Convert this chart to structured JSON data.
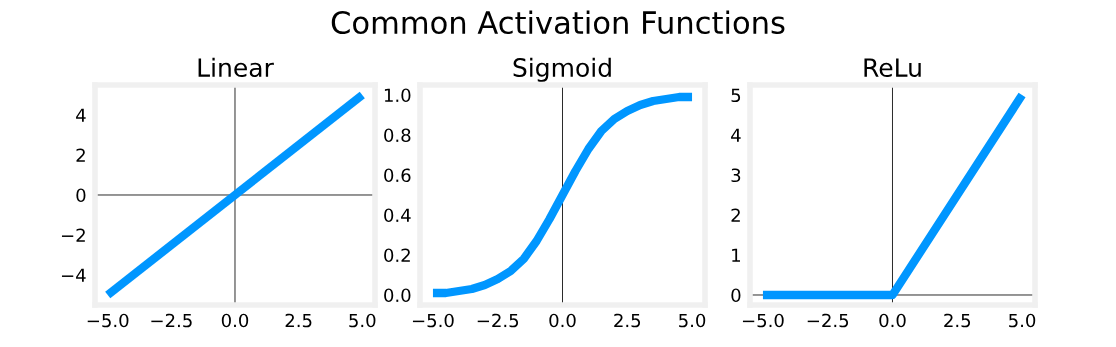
{
  "chart_data": [
    {
      "type": "line",
      "title": "Linear",
      "x": [
        -5,
        5
      ],
      "series": [
        {
          "color": "#0096ff",
          "values": [
            -5,
            5
          ]
        }
      ],
      "xlim": [
        -5.5,
        5.5
      ],
      "xticks": [
        {
          "value": -5,
          "label": "−5.0"
        },
        {
          "value": -2.5,
          "label": "−2.5"
        },
        {
          "value": 0,
          "label": "0.0"
        },
        {
          "value": 2.5,
          "label": "2.5"
        },
        {
          "value": 5,
          "label": "5.0"
        }
      ],
      "ylim": [
        -5.5,
        5.5
      ],
      "yticks": [
        {
          "value": -4,
          "label": "−4"
        },
        {
          "value": -2,
          "label": "−2"
        },
        0,
        2,
        4
      ],
      "ref_lines": [
        {
          "axis": "x",
          "value": 0,
          "color": "#000000"
        },
        {
          "axis": "y",
          "value": 0,
          "color": "#000000"
        }
      ],
      "annotations": [
        "Common Activation Functions"
      ]
    },
    {
      "type": "line",
      "title": "Sigmoid",
      "x": [
        -5,
        -4.5,
        -4,
        -3.5,
        -3,
        -2.5,
        -2,
        -1.5,
        -1,
        -0.5,
        0,
        0.5,
        1,
        1.5,
        2,
        2.5,
        3,
        3.5,
        4,
        4.5,
        5
      ],
      "series": [
        {
          "color": "#0096ff",
          "values": [
            0.01,
            0.01,
            0.02,
            0.03,
            0.05,
            0.08,
            0.12,
            0.18,
            0.27,
            0.38,
            0.5,
            0.62,
            0.73,
            0.82,
            0.88,
            0.92,
            0.95,
            0.97,
            0.98,
            0.99,
            0.99
          ]
        }
      ],
      "xlim": [
        -5.5,
        5.5
      ],
      "xticks": [
        {
          "value": -5,
          "label": "−5.0"
        },
        {
          "value": -2.5,
          "label": "−2.5"
        },
        {
          "value": 0,
          "label": "0.0"
        },
        {
          "value": 2.5,
          "label": "2.5"
        },
        {
          "value": 5,
          "label": "5.0"
        }
      ],
      "ylim": [
        -0.05,
        1.05
      ],
      "yticks": [
        {
          "value": 0,
          "label": "0.0"
        },
        {
          "value": 0.2,
          "label": "0.2"
        },
        {
          "value": 0.4,
          "label": "0.4"
        },
        {
          "value": 0.6,
          "label": "0.6"
        },
        {
          "value": 0.8,
          "label": "0.8"
        },
        {
          "value": 1,
          "label": "1.0"
        }
      ],
      "ref_lines": [
        {
          "axis": "x",
          "value": 0,
          "color": "#000000"
        }
      ]
    },
    {
      "type": "line",
      "title": "ReLu",
      "x": [
        -5,
        0,
        5
      ],
      "series": [
        {
          "color": "#0096ff",
          "values": [
            0,
            0,
            5
          ]
        }
      ],
      "xlim": [
        -5.5,
        5.5
      ],
      "xticks": [
        {
          "value": -5,
          "label": "−5.0"
        },
        {
          "value": -2.5,
          "label": "−2.5"
        },
        {
          "value": 0,
          "label": "0.0"
        },
        {
          "value": 2.5,
          "label": "2.5"
        },
        {
          "value": 5,
          "label": "5.0"
        }
      ],
      "ylim": [
        -0.25,
        5.25
      ],
      "yticks": [
        0,
        1,
        2,
        3,
        4,
        5
      ],
      "ref_lines": [
        {
          "axis": "x",
          "value": 0,
          "color": "#000000"
        },
        {
          "axis": "y",
          "value": 0,
          "color": "#000000"
        }
      ]
    }
  ]
}
